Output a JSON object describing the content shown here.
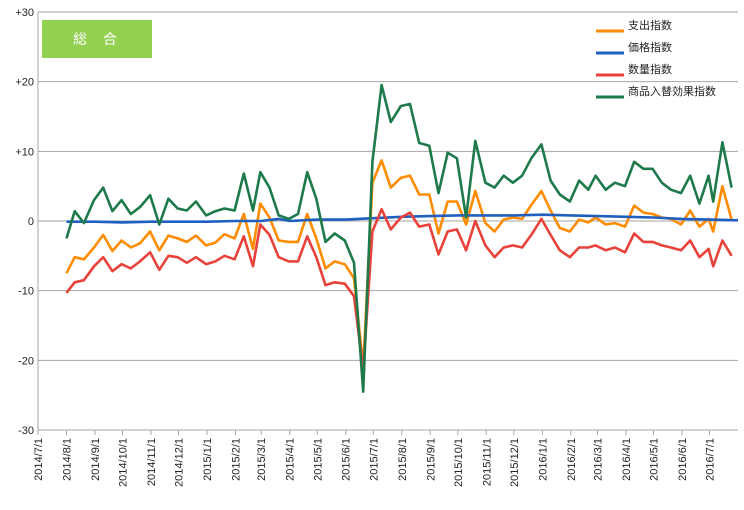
{
  "badge": {
    "label": "総 合",
    "color": "#92d050"
  },
  "chart_data": {
    "type": "line",
    "ylim": [
      -30,
      30
    ],
    "yticks": [
      {
        "value": 30,
        "label": "+30"
      },
      {
        "value": 20,
        "label": "+20"
      },
      {
        "value": 10,
        "label": "+10"
      },
      {
        "value": 0,
        "label": "0"
      },
      {
        "value": -10,
        "label": "-10"
      },
      {
        "value": -20,
        "label": "-20"
      },
      {
        "value": -30,
        "label": "-30"
      }
    ],
    "xticks": [
      "2014/7/1",
      "2014/8/1",
      "2014/9/1",
      "2014/10/1",
      "2014/11/1",
      "2014/12/1",
      "2015/1/1",
      "2015/2/1",
      "2015/3/1",
      "2015/4/1",
      "2015/5/1",
      "2015/6/1",
      "2015/7/1",
      "2015/8/1",
      "2015/9/1",
      "2015/10/1",
      "2015/11/1",
      "2015/12/1",
      "2016/1/1",
      "2016/2/1",
      "2016/3/1",
      "2016/4/1",
      "2016/5/1",
      "2016/6/1",
      "2016/7/1"
    ],
    "x_start": "2014/7/1",
    "x_end": "2016/8/1",
    "grid": true,
    "legend_position": "top-right",
    "series": [
      {
        "name": "支出指数",
        "color": "#ff8c00",
        "points": [
          [
            "2014/8/1",
            -7.5
          ],
          [
            "2014/8/10",
            -5.2
          ],
          [
            "2014/8/20",
            -5.5
          ],
          [
            "2014/8/31",
            -3.8
          ],
          [
            "2014/9/10",
            -2
          ],
          [
            "2014/9/20",
            -4.3
          ],
          [
            "2014/9/30",
            -2.8
          ],
          [
            "2014/10/10",
            -3.8
          ],
          [
            "2014/10/20",
            -3.2
          ],
          [
            "2014/10/31",
            -1.5
          ],
          [
            "2014/11/10",
            -4.2
          ],
          [
            "2014/11/20",
            -2.1
          ],
          [
            "2014/11/30",
            -2.5
          ],
          [
            "2014/12/10",
            -3.0
          ],
          [
            "2014/12/20",
            -2.1
          ],
          [
            "2014/12/31",
            -3.5
          ],
          [
            "2015/1/10",
            -3.1
          ],
          [
            "2015/1/20",
            -1.9
          ],
          [
            "2015/1/31",
            -2.5
          ],
          [
            "2015/2/10",
            1.0
          ],
          [
            "2015/2/20",
            -4.0
          ],
          [
            "2015/2/28",
            2.5
          ],
          [
            "2015/3/10",
            0.5
          ],
          [
            "2015/3/20",
            -2.8
          ],
          [
            "2015/3/31",
            -3.0
          ],
          [
            "2015/4/10",
            -3.0
          ],
          [
            "2015/4/20",
            1.0
          ],
          [
            "2015/4/30",
            -2.5
          ],
          [
            "2015/5/10",
            -6.8
          ],
          [
            "2015/5/20",
            -5.8
          ],
          [
            "2015/5/31",
            -6.2
          ],
          [
            "2015/6/10",
            -8.2
          ],
          [
            "2015/6/20",
            -21
          ],
          [
            "2015/6/30",
            5.5
          ],
          [
            "2015/7/10",
            8.7
          ],
          [
            "2015/7/20",
            4.8
          ],
          [
            "2015/7/31",
            6.2
          ],
          [
            "2015/8/10",
            6.5
          ],
          [
            "2015/8/20",
            3.8
          ],
          [
            "2015/8/31",
            3.8
          ],
          [
            "2015/9/10",
            -1.8
          ],
          [
            "2015/9/20",
            2.8
          ],
          [
            "2015/9/30",
            2.8
          ],
          [
            "2015/10/10",
            -0.5
          ],
          [
            "2015/10/20",
            4.3
          ],
          [
            "2015/10/31",
            -0.3
          ],
          [
            "2015/11/10",
            -1.5
          ],
          [
            "2015/11/20",
            0.2
          ],
          [
            "2015/11/30",
            0.5
          ],
          [
            "2015/12/10",
            0.3
          ],
          [
            "2015/12/20",
            2.3
          ],
          [
            "2015/12/31",
            4.3
          ],
          [
            "2016/1/10",
            1.5
          ],
          [
            "2016/1/20",
            -1.0
          ],
          [
            "2016/1/31",
            -1.5
          ],
          [
            "2016/2/10",
            0.2
          ],
          [
            "2016/2/20",
            -0.2
          ],
          [
            "2016/2/28",
            0.5
          ],
          [
            "2016/3/10",
            -0.5
          ],
          [
            "2016/3/20",
            -0.3
          ],
          [
            "2016/3/31",
            -0.8
          ],
          [
            "2016/4/10",
            2.2
          ],
          [
            "2016/4/20",
            1.2
          ],
          [
            "2016/4/30",
            1.0
          ],
          [
            "2016/5/10",
            0.5
          ],
          [
            "2016/5/20",
            0.3
          ],
          [
            "2016/5/31",
            -0.5
          ],
          [
            "2016/6/10",
            1.5
          ],
          [
            "2016/6/20",
            -0.8
          ],
          [
            "2016/6/30",
            0.3
          ],
          [
            "2016/7/5",
            -1.5
          ],
          [
            "2016/7/15",
            5.0
          ],
          [
            "2016/7/25",
            0.2
          ]
        ]
      },
      {
        "name": "価格指数",
        "color": "#1f5fbf",
        "points": [
          [
            "2014/8/1",
            -0.1
          ],
          [
            "2014/9/1",
            -0.1
          ],
          [
            "2014/10/1",
            -0.2
          ],
          [
            "2014/11/1",
            -0.1
          ],
          [
            "2014/12/1",
            -0.1
          ],
          [
            "2015/1/1",
            -0.1
          ],
          [
            "2015/2/1",
            0.0
          ],
          [
            "2015/3/1",
            0.0
          ],
          [
            "2015/3/20",
            0.3
          ],
          [
            "2015/4/1",
            0.0
          ],
          [
            "2015/5/1",
            0.2
          ],
          [
            "2015/6/1",
            0.2
          ],
          [
            "2015/7/1",
            0.4
          ],
          [
            "2015/8/1",
            0.6
          ],
          [
            "2015/9/1",
            0.7
          ],
          [
            "2015/10/1",
            0.8
          ],
          [
            "2015/11/1",
            0.8
          ],
          [
            "2015/12/1",
            0.8
          ],
          [
            "2016/1/1",
            0.9
          ],
          [
            "2016/2/1",
            0.8
          ],
          [
            "2016/3/1",
            0.7
          ],
          [
            "2016/4/1",
            0.6
          ],
          [
            "2016/5/1",
            0.5
          ],
          [
            "2016/6/1",
            0.3
          ],
          [
            "2016/7/1",
            0.2
          ],
          [
            "2016/8/1",
            0.1
          ]
        ]
      },
      {
        "name": "数量指数",
        "color": "#e8423a",
        "points": [
          [
            "2014/8/1",
            -10.3
          ],
          [
            "2014/8/10",
            -8.8
          ],
          [
            "2014/8/20",
            -8.5
          ],
          [
            "2014/8/31",
            -6.5
          ],
          [
            "2014/9/10",
            -5.2
          ],
          [
            "2014/9/20",
            -7.2
          ],
          [
            "2014/9/30",
            -6.2
          ],
          [
            "2014/10/10",
            -6.8
          ],
          [
            "2014/10/20",
            -5.8
          ],
          [
            "2014/10/31",
            -4.5
          ],
          [
            "2014/11/10",
            -7.0
          ],
          [
            "2014/11/20",
            -5.0
          ],
          [
            "2014/11/30",
            -5.2
          ],
          [
            "2014/12/10",
            -6.0
          ],
          [
            "2014/12/20",
            -5.2
          ],
          [
            "2014/12/31",
            -6.2
          ],
          [
            "2015/1/10",
            -5.8
          ],
          [
            "2015/1/20",
            -5.0
          ],
          [
            "2015/1/31",
            -5.5
          ],
          [
            "2015/2/10",
            -2.2
          ],
          [
            "2015/2/20",
            -6.5
          ],
          [
            "2015/2/28",
            -0.5
          ],
          [
            "2015/3/10",
            -2.0
          ],
          [
            "2015/3/20",
            -5.2
          ],
          [
            "2015/3/31",
            -5.8
          ],
          [
            "2015/4/10",
            -5.8
          ],
          [
            "2015/4/20",
            -2.2
          ],
          [
            "2015/4/30",
            -5.2
          ],
          [
            "2015/5/10",
            -9.2
          ],
          [
            "2015/5/20",
            -8.8
          ],
          [
            "2015/5/31",
            -9.0
          ],
          [
            "2015/6/10",
            -10.8
          ],
          [
            "2015/6/20",
            -21.5
          ],
          [
            "2015/6/30",
            -1.5
          ],
          [
            "2015/7/10",
            1.7
          ],
          [
            "2015/7/20",
            -1.2
          ],
          [
            "2015/7/31",
            0.5
          ],
          [
            "2015/8/10",
            1.2
          ],
          [
            "2015/8/20",
            -0.8
          ],
          [
            "2015/8/31",
            -0.5
          ],
          [
            "2015/9/10",
            -4.8
          ],
          [
            "2015/9/20",
            -1.5
          ],
          [
            "2015/9/30",
            -1.2
          ],
          [
            "2015/10/10",
            -4.2
          ],
          [
            "2015/10/20",
            0.0
          ],
          [
            "2015/10/31",
            -3.5
          ],
          [
            "2015/11/10",
            -5.2
          ],
          [
            "2015/11/20",
            -3.8
          ],
          [
            "2015/11/30",
            -3.5
          ],
          [
            "2015/12/10",
            -3.8
          ],
          [
            "2015/12/20",
            -2.0
          ],
          [
            "2015/12/31",
            0.3
          ],
          [
            "2016/1/10",
            -2.0
          ],
          [
            "2016/1/20",
            -4.2
          ],
          [
            "2016/1/31",
            -5.2
          ],
          [
            "2016/2/10",
            -3.8
          ],
          [
            "2016/2/20",
            -3.8
          ],
          [
            "2016/2/28",
            -3.5
          ],
          [
            "2016/3/10",
            -4.2
          ],
          [
            "2016/3/20",
            -3.8
          ],
          [
            "2016/3/31",
            -4.5
          ],
          [
            "2016/4/10",
            -1.8
          ],
          [
            "2016/4/20",
            -3.0
          ],
          [
            "2016/4/30",
            -3.0
          ],
          [
            "2016/5/10",
            -3.5
          ],
          [
            "2016/5/20",
            -3.8
          ],
          [
            "2016/5/31",
            -4.2
          ],
          [
            "2016/6/10",
            -2.8
          ],
          [
            "2016/6/20",
            -5.2
          ],
          [
            "2016/6/30",
            -4.0
          ],
          [
            "2016/7/5",
            -6.5
          ],
          [
            "2016/7/15",
            -2.8
          ],
          [
            "2016/7/25",
            -5.0
          ]
        ]
      },
      {
        "name": "商品入替効果指数",
        "color": "#1e7a4a",
        "points": [
          [
            "2014/8/1",
            -2.5
          ],
          [
            "2014/8/10",
            1.4
          ],
          [
            "2014/8/20",
            -0.3
          ],
          [
            "2014/8/31",
            3.0
          ],
          [
            "2014/9/10",
            4.8
          ],
          [
            "2014/9/20",
            1.4
          ],
          [
            "2014/9/30",
            3.0
          ],
          [
            "2014/10/10",
            1.0
          ],
          [
            "2014/10/20",
            2.0
          ],
          [
            "2014/10/31",
            3.7
          ],
          [
            "2014/11/10",
            -0.5
          ],
          [
            "2014/11/20",
            3.2
          ],
          [
            "2014/11/30",
            1.8
          ],
          [
            "2014/12/10",
            1.5
          ],
          [
            "2014/12/20",
            2.8
          ],
          [
            "2014/12/31",
            0.8
          ],
          [
            "2015/1/10",
            1.4
          ],
          [
            "2015/1/20",
            1.8
          ],
          [
            "2015/1/31",
            1.5
          ],
          [
            "2015/2/10",
            6.8
          ],
          [
            "2015/2/20",
            1.5
          ],
          [
            "2015/2/28",
            7.0
          ],
          [
            "2015/3/10",
            4.8
          ],
          [
            "2015/3/20",
            0.8
          ],
          [
            "2015/3/31",
            0.3
          ],
          [
            "2015/4/10",
            1.0
          ],
          [
            "2015/4/20",
            7.0
          ],
          [
            "2015/4/30",
            3.2
          ],
          [
            "2015/5/10",
            -3.0
          ],
          [
            "2015/5/20",
            -1.8
          ],
          [
            "2015/5/31",
            -2.8
          ],
          [
            "2015/6/10",
            -6.0
          ],
          [
            "2015/6/20",
            -24.5
          ],
          [
            "2015/6/30",
            8.5
          ],
          [
            "2015/7/10",
            19.5
          ],
          [
            "2015/7/20",
            14.2
          ],
          [
            "2015/7/31",
            16.5
          ],
          [
            "2015/8/10",
            16.8
          ],
          [
            "2015/8/20",
            11.2
          ],
          [
            "2015/8/31",
            10.8
          ],
          [
            "2015/9/10",
            4.0
          ],
          [
            "2015/9/20",
            9.8
          ],
          [
            "2015/9/30",
            9.0
          ],
          [
            "2015/10/10",
            0.5
          ],
          [
            "2015/10/20",
            11.5
          ],
          [
            "2015/10/31",
            5.5
          ],
          [
            "2015/11/10",
            4.8
          ],
          [
            "2015/11/20",
            6.5
          ],
          [
            "2015/11/30",
            5.5
          ],
          [
            "2015/12/10",
            6.5
          ],
          [
            "2015/12/20",
            9.0
          ],
          [
            "2015/12/31",
            11.0
          ],
          [
            "2016/1/10",
            5.8
          ],
          [
            "2016/1/20",
            3.8
          ],
          [
            "2016/1/31",
            2.8
          ],
          [
            "2016/2/10",
            5.8
          ],
          [
            "2016/2/20",
            4.5
          ],
          [
            "2016/2/28",
            6.5
          ],
          [
            "2016/3/10",
            4.5
          ],
          [
            "2016/3/20",
            5.5
          ],
          [
            "2016/3/31",
            5.0
          ],
          [
            "2016/4/10",
            8.5
          ],
          [
            "2016/4/20",
            7.5
          ],
          [
            "2016/4/30",
            7.5
          ],
          [
            "2016/5/10",
            5.5
          ],
          [
            "2016/5/20",
            4.5
          ],
          [
            "2016/5/31",
            4.0
          ],
          [
            "2016/6/10",
            6.5
          ],
          [
            "2016/6/20",
            2.5
          ],
          [
            "2016/6/30",
            6.5
          ],
          [
            "2016/7/5",
            2.8
          ],
          [
            "2016/7/15",
            11.3
          ],
          [
            "2016/7/25",
            4.8
          ]
        ]
      }
    ]
  }
}
